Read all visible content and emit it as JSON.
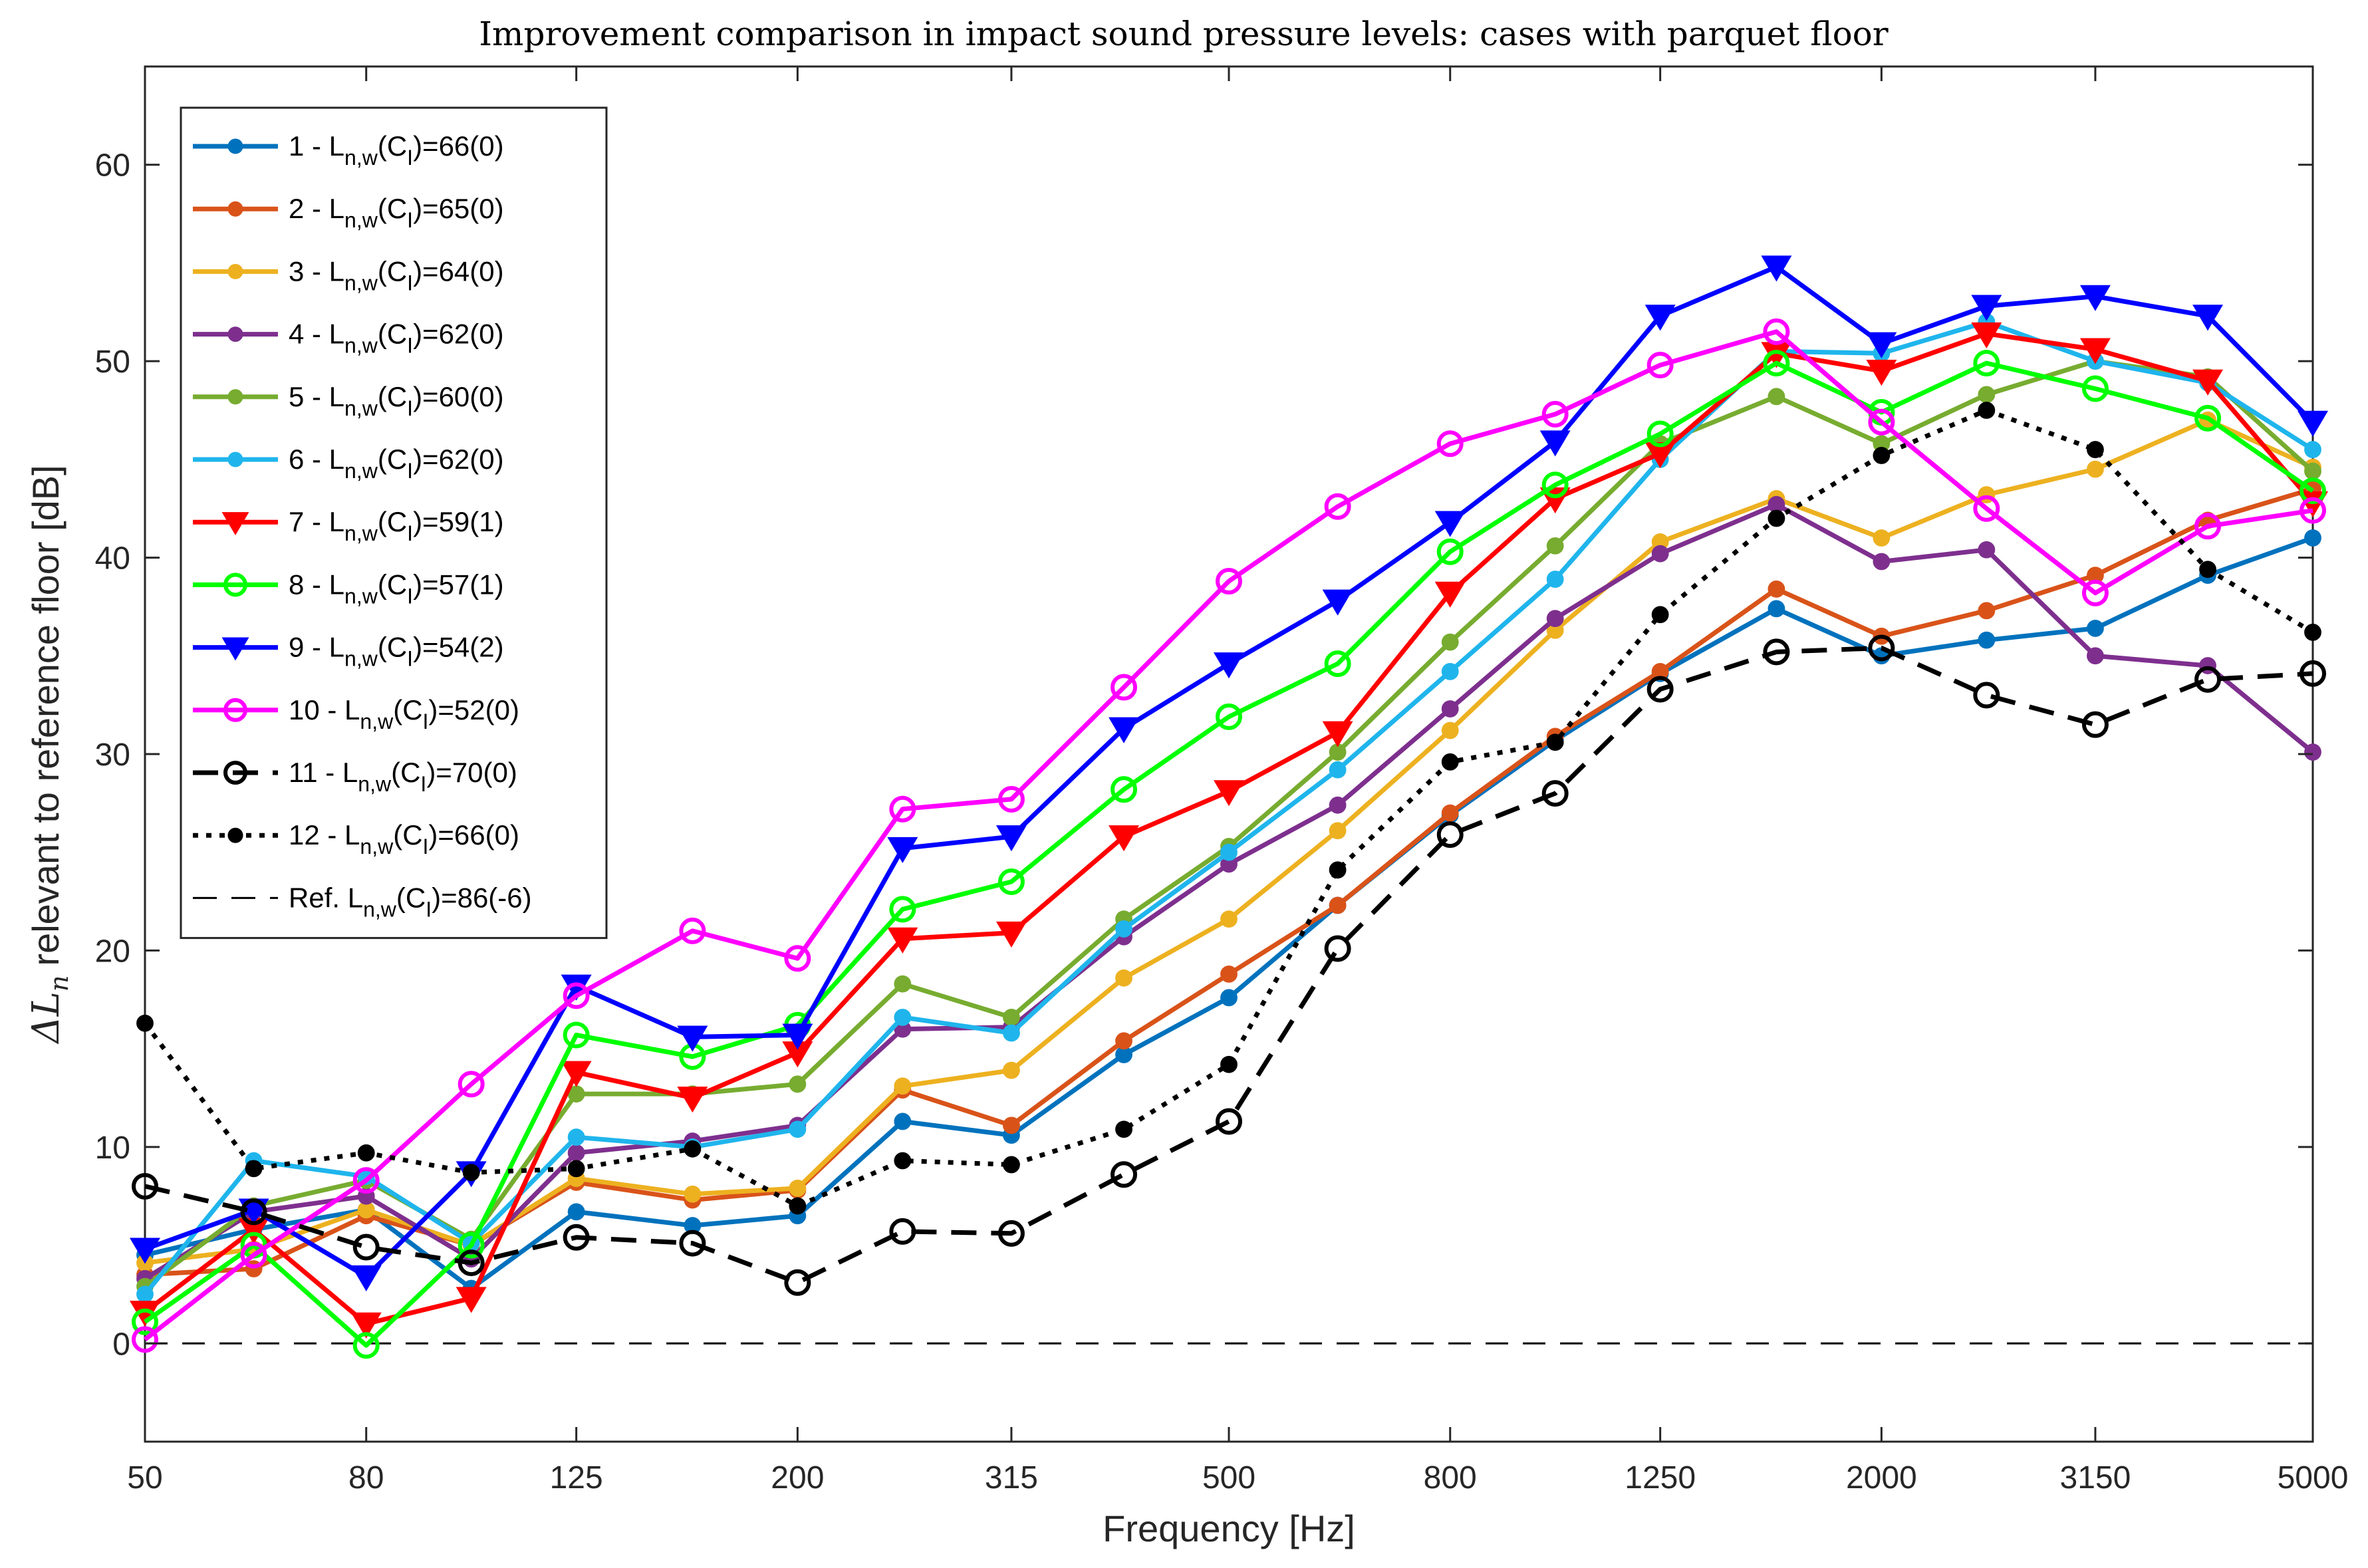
{
  "chart_data": {
    "type": "line",
    "title": "Improvement comparison in impact sound pressure levels: cases with parquet floor",
    "xlabel": "Frequency [Hz]",
    "ylabel": "relevant to reference floor [dB]",
    "ylabel_symbol": "ΔL",
    "ylabel_subscript": "n",
    "x_scale": "log",
    "x": [
      50,
      63,
      80,
      100,
      125,
      160,
      200,
      250,
      315,
      400,
      500,
      630,
      800,
      1000,
      1250,
      1600,
      2000,
      2500,
      3150,
      4000,
      5000
    ],
    "x_tick_labels": [
      "50",
      "80",
      "125",
      "200",
      "315",
      "500",
      "800",
      "1250",
      "2000",
      "3150",
      "5000"
    ],
    "x_tick_values": [
      50,
      80,
      125,
      200,
      315,
      500,
      800,
      1250,
      2000,
      3150,
      5000
    ],
    "ylim": [
      -5,
      65
    ],
    "y_ticks": [
      0,
      10,
      20,
      30,
      40,
      50,
      60
    ],
    "grid": false,
    "legend_position": "top-left",
    "series": [
      {
        "legend_prefix": "1 - L",
        "legend_sub": "n,w",
        "legend_mid": "(C",
        "legend_sub2": "I",
        "legend_suffix": ")=66(0)",
        "color": "#0072BD",
        "marker": "dot",
        "line": "solid",
        "values": [
          4.5,
          5.8,
          6.8,
          2.8,
          6.7,
          6.0,
          6.5,
          11.3,
          10.6,
          14.7,
          17.6,
          22.3,
          26.9,
          30.7,
          34.1,
          37.4,
          35.0,
          35.8,
          36.4,
          39.1,
          41.0
        ]
      },
      {
        "legend_prefix": "2 - L",
        "legend_sub": "n,w",
        "legend_mid": "(C",
        "legend_sub2": "I",
        "legend_suffix": ")=65(0)",
        "color": "#D95319",
        "marker": "dot",
        "line": "solid",
        "values": [
          3.5,
          3.8,
          6.5,
          5.0,
          8.2,
          7.3,
          7.8,
          12.9,
          11.1,
          15.4,
          18.8,
          22.3,
          27.0,
          30.9,
          34.2,
          38.4,
          36.0,
          37.3,
          39.1,
          41.9,
          43.5
        ]
      },
      {
        "legend_prefix": "3 - L",
        "legend_sub": "n,w",
        "legend_mid": "(C",
        "legend_sub2": "I",
        "legend_suffix": ")=64(0)",
        "color": "#EDB120",
        "marker": "dot",
        "line": "solid",
        "values": [
          4.1,
          4.8,
          6.8,
          5.0,
          8.4,
          7.6,
          7.9,
          13.1,
          13.9,
          18.6,
          21.6,
          26.1,
          31.2,
          36.3,
          40.8,
          43.0,
          41.0,
          43.2,
          44.5,
          47.0,
          44.6
        ]
      },
      {
        "legend_prefix": "4 - L",
        "legend_sub": "n,w",
        "legend_mid": "(C",
        "legend_sub2": "I",
        "legend_suffix": ")=62(0)",
        "color": "#7E2F8E",
        "marker": "dot",
        "line": "solid",
        "values": [
          3.3,
          6.7,
          7.5,
          4.3,
          9.7,
          10.3,
          11.1,
          16.0,
          16.1,
          20.7,
          24.4,
          27.4,
          32.3,
          36.9,
          40.2,
          42.7,
          39.8,
          40.4,
          35.0,
          34.5,
          30.1
        ]
      },
      {
        "legend_prefix": "5 - L",
        "legend_sub": "n,w",
        "legend_mid": "(C",
        "legend_sub2": "I",
        "legend_suffix": ")=60(0)",
        "color": "#77AC30",
        "marker": "dot",
        "line": "solid",
        "values": [
          2.9,
          7.0,
          8.3,
          5.3,
          12.7,
          12.7,
          13.2,
          18.3,
          16.6,
          21.6,
          25.3,
          30.1,
          35.7,
          40.6,
          45.8,
          48.2,
          45.8,
          48.3,
          50.0,
          49.2,
          44.4
        ]
      },
      {
        "legend_prefix": "6 - L",
        "legend_sub": "n,w",
        "legend_mid": "(C",
        "legend_sub2": "I",
        "legend_suffix": ")=62(0)",
        "color": "#1FB5EC",
        "marker": "dot",
        "line": "solid",
        "values": [
          2.5,
          9.3,
          8.5,
          5.1,
          10.5,
          10.0,
          10.9,
          16.6,
          15.8,
          21.1,
          25.0,
          29.2,
          34.2,
          38.9,
          45.0,
          50.5,
          50.4,
          52.0,
          50.0,
          48.9,
          45.5
        ]
      },
      {
        "legend_prefix": "7 - L",
        "legend_sub": "n,w",
        "legend_mid": "(C",
        "legend_sub2": "I",
        "legend_suffix": ")=59(1)",
        "color": "#FF0000",
        "marker": "triangle-down",
        "line": "solid",
        "values": [
          1.6,
          5.8,
          1.0,
          2.3,
          13.8,
          12.5,
          14.8,
          20.6,
          20.9,
          25.8,
          28.1,
          31.1,
          38.2,
          43.0,
          45.3,
          50.4,
          49.5,
          51.4,
          50.6,
          49.0,
          42.8
        ]
      },
      {
        "legend_prefix": "8 - L",
        "legend_sub": "n,w",
        "legend_mid": "(C",
        "legend_sub2": "I",
        "legend_suffix": ")=57(1)",
        "color": "#00FF00",
        "marker": "circle",
        "line": "solid",
        "values": [
          1.1,
          5.0,
          -0.1,
          5.0,
          15.7,
          14.6,
          16.2,
          22.1,
          23.5,
          28.2,
          31.9,
          34.6,
          40.3,
          43.7,
          46.3,
          49.9,
          47.4,
          49.9,
          48.6,
          47.1,
          43.4
        ]
      },
      {
        "legend_prefix": "9 - L",
        "legend_sub": "n,w",
        "legend_mid": "(C",
        "legend_sub2": "I",
        "legend_suffix": ")=54(2)",
        "color": "#0000FF",
        "marker": "triangle-down",
        "line": "solid",
        "values": [
          4.8,
          6.8,
          3.4,
          8.7,
          18.2,
          15.6,
          15.7,
          25.2,
          25.8,
          31.3,
          34.6,
          37.8,
          41.8,
          45.9,
          52.3,
          54.8,
          50.9,
          52.8,
          53.3,
          52.3,
          46.9
        ]
      },
      {
        "legend_prefix": "10 - L",
        "legend_sub": "n,w",
        "legend_mid": "(C",
        "legend_sub2": "I",
        "legend_suffix": ")=52(0)",
        "color": "#FF00FF",
        "marker": "circle",
        "line": "solid",
        "values": [
          0.2,
          4.5,
          8.3,
          13.2,
          17.7,
          21.0,
          19.6,
          27.2,
          27.7,
          33.4,
          38.8,
          42.6,
          45.8,
          47.3,
          49.8,
          51.5,
          46.9,
          42.5,
          38.2,
          41.6,
          42.4
        ]
      },
      {
        "legend_prefix": "11 - L",
        "legend_sub": "n,w",
        "legend_mid": "(C",
        "legend_sub2": "I",
        "legend_suffix": ")=70(0)",
        "color": "#000000",
        "marker": "circle",
        "line": "dashed",
        "values": [
          8.0,
          6.7,
          4.9,
          4.1,
          5.4,
          5.1,
          3.1,
          5.7,
          5.6,
          8.6,
          11.3,
          20.1,
          25.9,
          28.0,
          33.3,
          35.2,
          35.4,
          33.0,
          31.5,
          33.8,
          34.1
        ]
      },
      {
        "legend_prefix": "12 - L",
        "legend_sub": "n,w",
        "legend_mid": "(C",
        "legend_sub2": "I",
        "legend_suffix": ")=66(0)",
        "color": "#000000",
        "marker": "dot",
        "line": "dotted",
        "values": [
          16.3,
          8.9,
          9.7,
          8.7,
          8.9,
          9.9,
          7.0,
          9.3,
          9.1,
          10.9,
          14.2,
          24.1,
          29.6,
          30.6,
          37.1,
          42.0,
          45.2,
          47.5,
          45.5,
          39.4,
          36.2
        ]
      }
    ],
    "reference": {
      "legend_prefix": "Ref. L",
      "legend_sub": "n,w",
      "legend_mid": "(C",
      "legend_sub2": "I",
      "legend_suffix": ")=86(-6)",
      "color": "#000000",
      "line": "dashed",
      "value": 0
    }
  }
}
